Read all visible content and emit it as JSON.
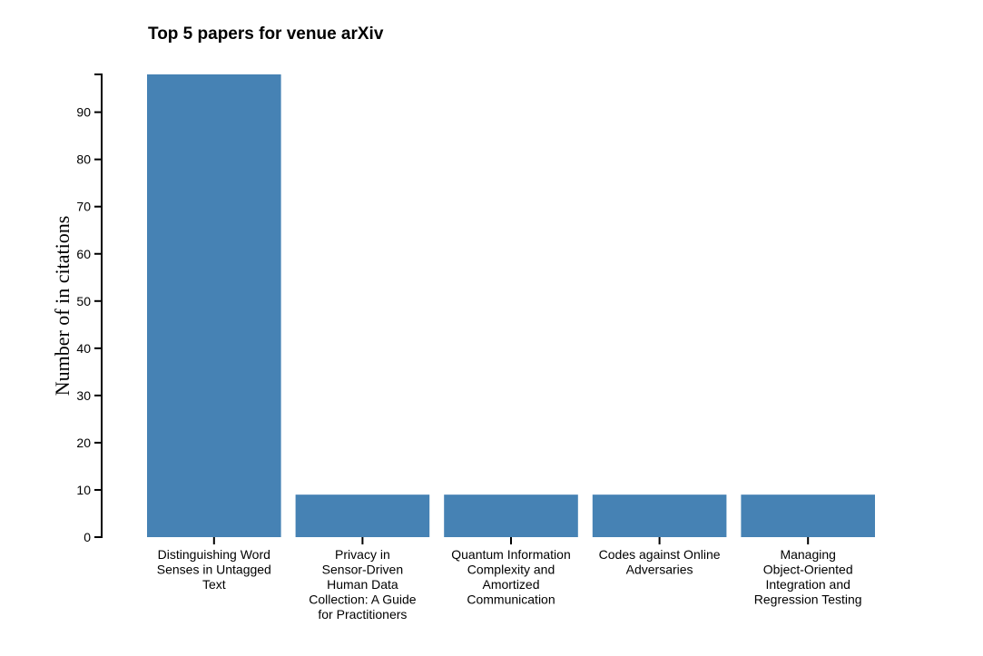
{
  "chart_data": {
    "type": "bar",
    "title": "Top 5 papers for venue arXiv",
    "ylabel": "Number of in citations",
    "xlabel": "",
    "categories": [
      "Distinguishing Word Senses in Untagged Text",
      "Privacy in Sensor-Driven Human Data Collection: A Guide for Practitioners",
      "Quantum Information Complexity and Amortized Communication",
      "Codes against Online Adversaries",
      "Managing Object-Oriented Integration and Regression Testing"
    ],
    "category_lines": [
      [
        "Distinguishing Word",
        "Senses in Untagged",
        "Text"
      ],
      [
        "Privacy in",
        "Sensor-Driven",
        "Human Data",
        "Collection: A Guide",
        "for Practitioners"
      ],
      [
        "Quantum Information",
        "Complexity and",
        "Amortized",
        "Communication"
      ],
      [
        "Codes against Online",
        "Adversaries"
      ],
      [
        "Managing",
        "Object-Oriented",
        "Integration and",
        "Regression Testing"
      ]
    ],
    "values": [
      98,
      9,
      9,
      9,
      9
    ],
    "ylim": [
      0,
      98
    ],
    "yticks": [
      0,
      10,
      20,
      30,
      40,
      50,
      60,
      70,
      80,
      90
    ],
    "bar_color": "#4682b4",
    "grid": false
  }
}
